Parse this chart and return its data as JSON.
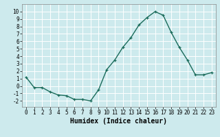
{
  "x": [
    0,
    1,
    2,
    3,
    4,
    5,
    6,
    7,
    8,
    9,
    10,
    11,
    12,
    13,
    14,
    15,
    16,
    17,
    18,
    19,
    20,
    21,
    22,
    23
  ],
  "y": [
    1.2,
    -0.2,
    -0.2,
    -0.8,
    -1.2,
    -1.3,
    -1.8,
    -1.8,
    -2.0,
    -0.5,
    2.2,
    3.5,
    5.2,
    6.5,
    8.2,
    9.2,
    10.0,
    9.5,
    7.2,
    5.2,
    3.5,
    1.5,
    1.5,
    1.8
  ],
  "line_color": "#1a6b5a",
  "marker": "+",
  "marker_size": 3.5,
  "linewidth": 1.0,
  "xlabel": "Humidex (Indice chaleur)",
  "xlim": [
    -0.5,
    23.5
  ],
  "ylim": [
    -2.8,
    11.0
  ],
  "yticks": [
    -2,
    -1,
    0,
    1,
    2,
    3,
    4,
    5,
    6,
    7,
    8,
    9,
    10
  ],
  "xticks": [
    0,
    1,
    2,
    3,
    4,
    5,
    6,
    7,
    8,
    9,
    10,
    11,
    12,
    13,
    14,
    15,
    16,
    17,
    18,
    19,
    20,
    21,
    22,
    23
  ],
  "bg_color": "#cdeaed",
  "grid_color": "#ffffff",
  "grid_minor_color": "#e8f8f9",
  "tick_label_fontsize": 5.5,
  "xlabel_fontsize": 7.0,
  "spine_color": "#888888"
}
